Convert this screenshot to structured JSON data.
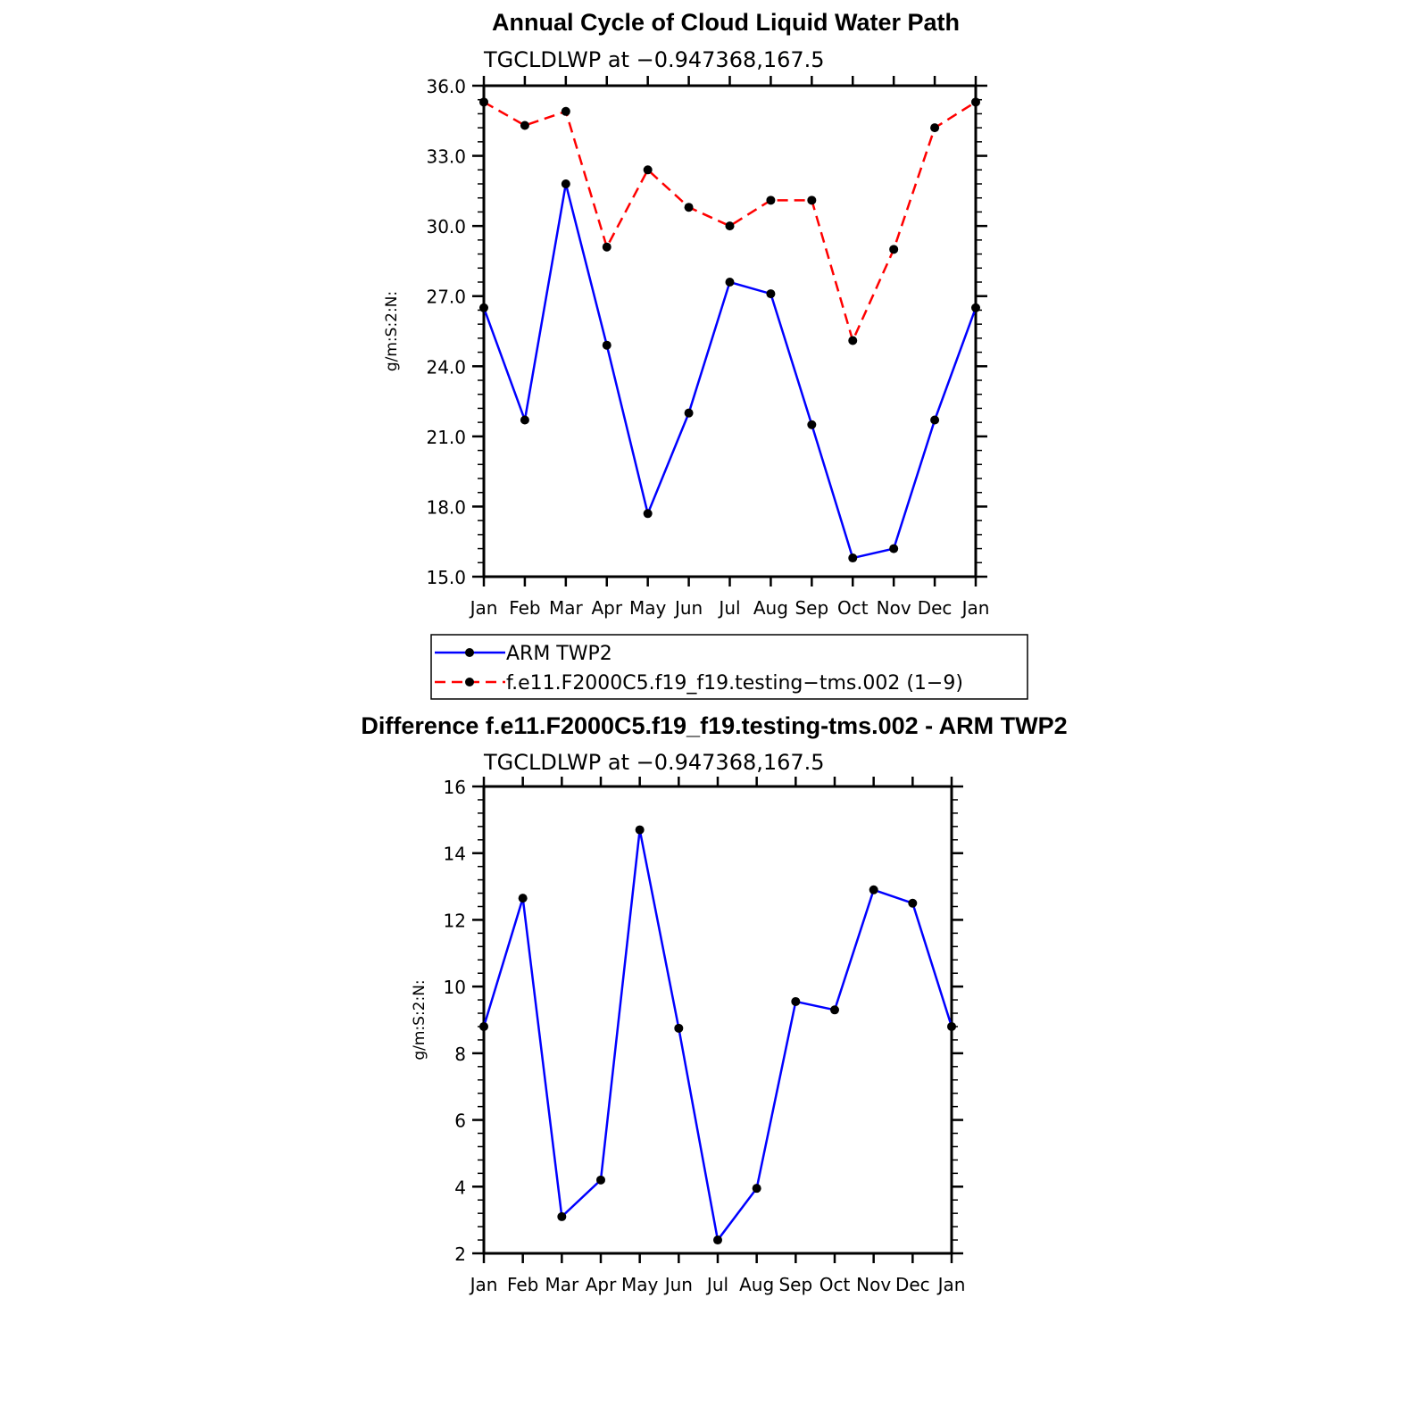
{
  "chart_data": [
    {
      "type": "line",
      "title": "Annual Cycle of Cloud Liquid Water Path",
      "subtitle": "TGCLDLWP  at  −0.947368,167.5",
      "ylabel": "g/m:S:2:N:",
      "xlabel": "",
      "ylim": [
        15,
        36
      ],
      "yticks": [
        "15.0",
        "18.0",
        "21.0",
        "24.0",
        "27.0",
        "30.0",
        "33.0",
        "36.0"
      ],
      "categories": [
        "Jan",
        "Feb",
        "Mar",
        "Apr",
        "May",
        "Jun",
        "Jul",
        "Aug",
        "Sep",
        "Oct",
        "Nov",
        "Dec",
        "Jan"
      ],
      "series": [
        {
          "name": "ARM TWP2",
          "color": "#0000ff",
          "dash": "solid",
          "values": [
            26.5,
            21.7,
            31.8,
            24.9,
            17.7,
            22.0,
            27.6,
            27.1,
            21.5,
            15.8,
            16.2,
            21.7,
            26.5
          ]
        },
        {
          "name": "f.e11.F2000C5.f19_f19.testing−tms.002 (1−9)",
          "color": "#ff0000",
          "dash": "dashed",
          "values": [
            35.3,
            34.3,
            34.9,
            29.1,
            32.4,
            30.8,
            30.0,
            31.1,
            31.1,
            25.1,
            29.0,
            34.2,
            35.3
          ]
        }
      ],
      "grid": false,
      "legend": "below"
    },
    {
      "type": "line",
      "title": "Difference f.e11.F2000C5.f19_f19.testing-tms.002 - ARM TWP2",
      "subtitle": "TGCLDLWP  at  −0.947368,167.5",
      "ylabel": "g/m:S:2:N:",
      "xlabel": "",
      "ylim": [
        2,
        16
      ],
      "yticks": [
        "2",
        "4",
        "6",
        "8",
        "10",
        "12",
        "14",
        "16"
      ],
      "categories": [
        "Jan",
        "Feb",
        "Mar",
        "Apr",
        "May",
        "Jun",
        "Jul",
        "Aug",
        "Sep",
        "Oct",
        "Nov",
        "Dec",
        "Jan"
      ],
      "series": [
        {
          "color": "#0000ff",
          "dash": "solid",
          "values": [
            8.8,
            12.65,
            3.1,
            4.2,
            14.7,
            8.75,
            2.4,
            3.95,
            9.55,
            9.3,
            12.9,
            12.5,
            8.8
          ]
        }
      ],
      "grid": false
    }
  ]
}
